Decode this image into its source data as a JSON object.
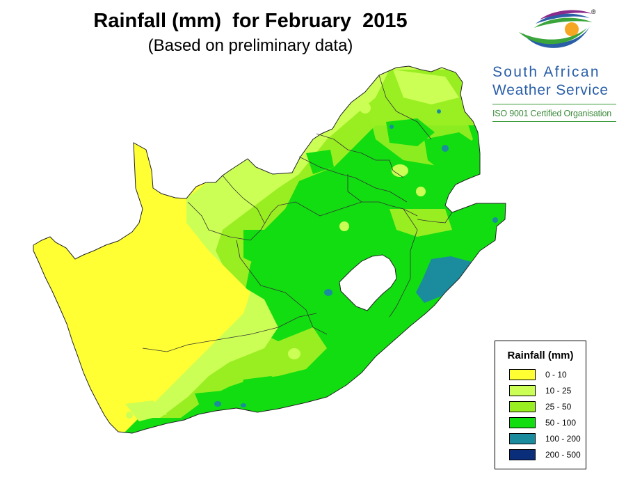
{
  "title": "Rainfall (mm)  for February  2015",
  "subtitle": "(Based on preliminary data)",
  "logo": {
    "line1": "South African",
    "line2": "Weather Service",
    "certification": "ISO 9001 Certified Organisation",
    "registered_mark": "®",
    "text_color": "#2a5fa8",
    "cert_color": "#3a8a3a",
    "icon": "sun-swoosh-logo-icon"
  },
  "legend": {
    "title": "Rainfall (mm)",
    "items": [
      {
        "label": "0 - 10",
        "color": "#ffff33"
      },
      {
        "label": "10 - 25",
        "color": "#ccff55"
      },
      {
        "label": "25 - 50",
        "color": "#99ee22"
      },
      {
        "label": "50 - 100",
        "color": "#11dd11"
      },
      {
        "label": "100 - 200",
        "color": "#1a8c9e"
      },
      {
        "label": "200 - 500",
        "color": "#0a2e7a"
      }
    ]
  },
  "map": {
    "region": "South Africa",
    "excluded_region": "Lesotho"
  }
}
